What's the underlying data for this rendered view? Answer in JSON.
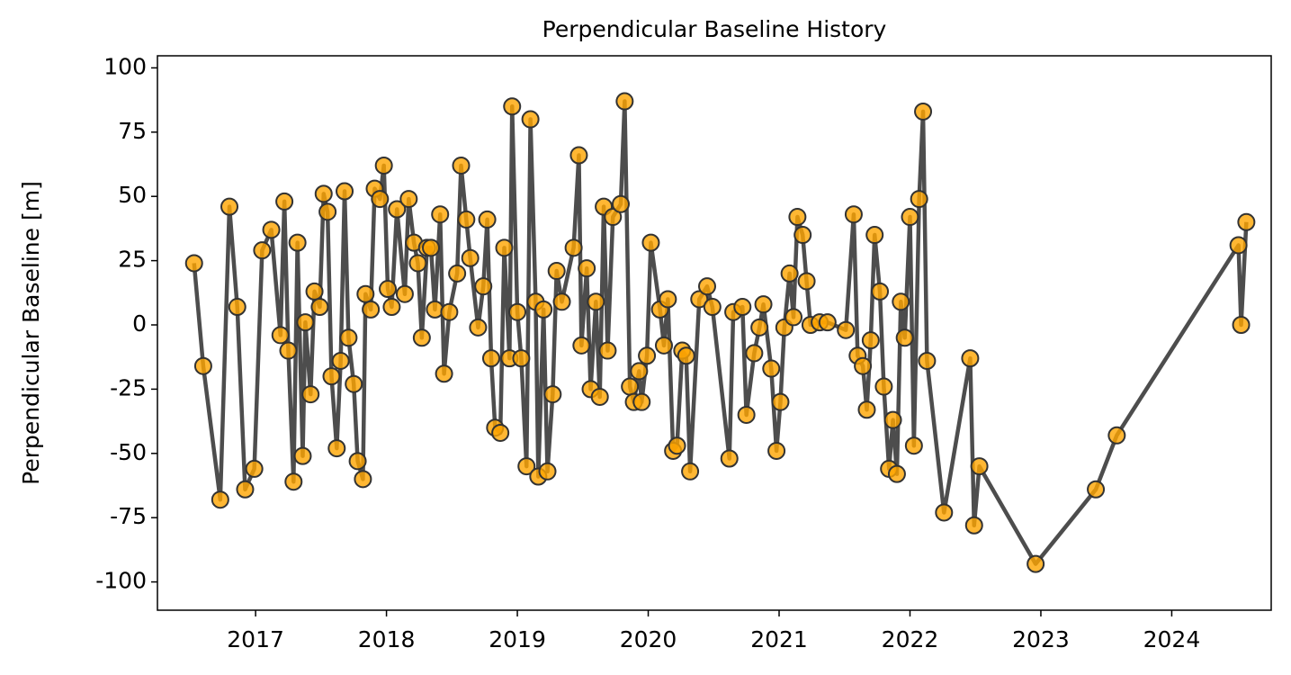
{
  "chart_data": {
    "type": "line",
    "title": "Perpendicular Baseline History",
    "ylabel": "Perpendicular Baseline [m]",
    "color": "#3a3a3a",
    "marker_color": "#ffa500",
    "marker_edge_color": "#333333",
    "xlim": [
      2016.25,
      2024.76
    ],
    "xticks": [
      2017,
      2018,
      2019,
      2020,
      2021,
      2022,
      2023,
      2024
    ],
    "ylim": [
      -111,
      104.7
    ],
    "yticks": [
      -100,
      -75,
      -50,
      -25,
      0,
      25,
      50,
      75,
      100
    ],
    "grid": false,
    "x": [
      2016.53,
      2016.6,
      2016.73,
      2016.8,
      2016.86,
      2016.92,
      2016.99,
      2017.05,
      2017.12,
      2017.19,
      2017.22,
      2017.25,
      2017.29,
      2017.32,
      2017.36,
      2017.38,
      2017.42,
      2017.45,
      2017.49,
      2017.52,
      2017.55,
      2017.58,
      2017.62,
      2017.65,
      2017.68,
      2017.71,
      2017.75,
      2017.78,
      2017.82,
      2017.84,
      2017.88,
      2017.91,
      2017.95,
      2017.98,
      2018.01,
      2018.04,
      2018.08,
      2018.14,
      2018.17,
      2018.21,
      2018.24,
      2018.27,
      2018.31,
      2018.34,
      2018.37,
      2018.41,
      2018.44,
      2018.48,
      2018.54,
      2018.57,
      2018.61,
      2018.64,
      2018.7,
      2018.74,
      2018.77,
      2018.8,
      2018.83,
      2018.87,
      2018.9,
      2018.94,
      2018.96,
      2019.0,
      2019.03,
      2019.07,
      2019.1,
      2019.14,
      2019.16,
      2019.2,
      2019.23,
      2019.27,
      2019.3,
      2019.34,
      2019.43,
      2019.47,
      2019.49,
      2019.53,
      2019.56,
      2019.6,
      2019.63,
      2019.66,
      2019.69,
      2019.73,
      2019.79,
      2019.82,
      2019.86,
      2019.89,
      2019.93,
      2019.95,
      2019.99,
      2020.02,
      2020.09,
      2020.12,
      2020.15,
      2020.19,
      2020.22,
      2020.26,
      2020.29,
      2020.32,
      2020.39,
      2020.45,
      2020.49,
      2020.62,
      2020.65,
      2020.72,
      2020.75,
      2020.81,
      2020.85,
      2020.88,
      2020.94,
      2020.98,
      2021.01,
      2021.04,
      2021.08,
      2021.11,
      2021.14,
      2021.18,
      2021.21,
      2021.24,
      2021.31,
      2021.37,
      2021.51,
      2021.57,
      2021.6,
      2021.64,
      2021.67,
      2021.7,
      2021.73,
      2021.77,
      2021.8,
      2021.84,
      2021.87,
      2021.9,
      2021.93,
      2021.96,
      2022.0,
      2022.03,
      2022.07,
      2022.1,
      2022.13,
      2022.26,
      2022.46,
      2022.49,
      2022.53,
      2022.96,
      2023.42,
      2023.58,
      2024.51,
      2024.53,
      2024.57
    ],
    "values": [
      24,
      -16,
      -68,
      46,
      7,
      -64,
      -56,
      29,
      37,
      -4,
      48,
      -10,
      -61,
      32,
      -51,
      1,
      -27,
      13,
      7,
      51,
      44,
      -20,
      -48,
      -14,
      52,
      -5,
      -23,
      -53,
      -60,
      12,
      6,
      53,
      49,
      62,
      14,
      7,
      45,
      12,
      49,
      32,
      24,
      -5,
      30,
      30,
      6,
      43,
      -19,
      5,
      20,
      62,
      41,
      26,
      -1,
      15,
      41,
      -13,
      -40,
      -42,
      30,
      -13,
      85,
      5,
      -13,
      -55,
      80,
      9,
      -59,
      6,
      -57,
      -27,
      21,
      9,
      30,
      66,
      -8,
      22,
      -25,
      9,
      -28,
      46,
      -10,
      42,
      47,
      87,
      -24,
      -30,
      -18,
      -30,
      -12,
      32,
      6,
      -8,
      10,
      -49,
      -47,
      -10,
      -12,
      -57,
      10,
      15,
      7,
      -52,
      5,
      7,
      -35,
      -11,
      -1,
      8,
      -17,
      -49,
      -30,
      -1,
      20,
      3,
      42,
      35,
      17,
      0,
      1,
      1,
      -2,
      43,
      -12,
      -16,
      -33,
      -6,
      35,
      13,
      -24,
      -56,
      -37,
      -58,
      9,
      -5,
      42,
      -47,
      49,
      83,
      -14,
      -73,
      -13,
      -78,
      -55,
      -93,
      -64,
      -43,
      31,
      0,
      40
    ]
  }
}
